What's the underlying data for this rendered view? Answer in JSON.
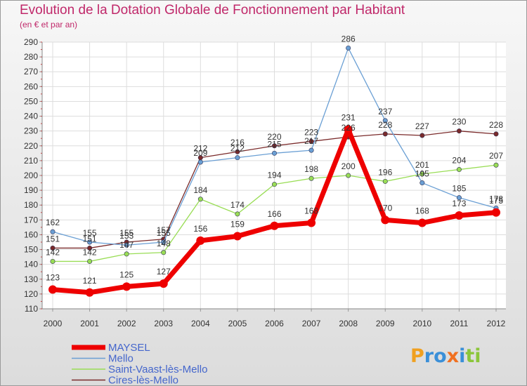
{
  "chart_data": {
    "type": "line",
    "title": "Evolution de la Dotation Globale de Fonctionnement par Habitant",
    "subtitle": "(en € et par an)",
    "x": [
      "2000",
      "2001",
      "2002",
      "2003",
      "2004",
      "2005",
      "2006",
      "2007",
      "2008",
      "2009",
      "2010",
      "2011",
      "2012"
    ],
    "ylim": [
      110,
      290
    ],
    "yticks": [
      110,
      120,
      130,
      140,
      150,
      160,
      170,
      180,
      190,
      200,
      210,
      220,
      230,
      240,
      250,
      260,
      270,
      280,
      290
    ],
    "grid": true,
    "series": [
      {
        "name": "MAYSEL",
        "color": "#ee0000",
        "values": [
          123,
          121,
          125,
          127,
          156,
          159,
          166,
          168,
          231,
          170,
          168,
          173,
          175
        ]
      },
      {
        "name": "Mello",
        "color": "#6a9fd4",
        "values": [
          162,
          155,
          153,
          155,
          209,
          212,
          215,
          217,
          286,
          237,
          195,
          185,
          178
        ]
      },
      {
        "name": "Saint-Vaast-lès-Mello",
        "color": "#99dd55",
        "values": [
          142,
          142,
          147,
          148,
          184,
          174,
          194,
          198,
          200,
          196,
          201,
          204,
          207
        ]
      },
      {
        "name": "Cires-lès-Mello",
        "color": "#7a2a2a",
        "values": [
          151,
          151,
          155,
          157,
          212,
          216,
          220,
          223,
          226,
          228,
          227,
          230,
          228
        ]
      }
    ],
    "point_labels": [
      [
        "123",
        "121",
        "125",
        "127",
        "156",
        "159",
        "166",
        "168",
        "231",
        "170",
        "168",
        "173",
        "175"
      ],
      [
        "162",
        "155",
        "153",
        "155",
        "209",
        "212",
        "215",
        "217",
        "286",
        "237",
        "195",
        "185",
        "178"
      ],
      [
        "142",
        "142",
        "147",
        "148",
        "184",
        "174",
        "194",
        "198",
        "200",
        "196",
        "201",
        "204",
        "207"
      ],
      [
        "151",
        "151",
        "155",
        "157",
        "212",
        "216",
        "220",
        "223",
        "226",
        "228",
        "227",
        "230",
        "228"
      ]
    ],
    "legend": "bottom-left"
  },
  "logo_text": "Proxiti"
}
